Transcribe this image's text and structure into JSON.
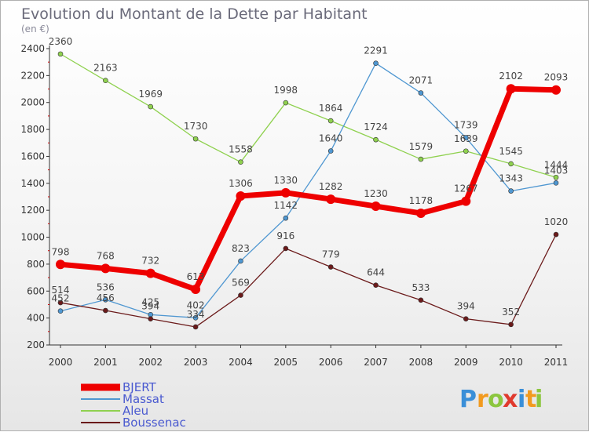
{
  "chart_data": {
    "type": "line",
    "title": "Evolution du Montant de la Dette par Habitant",
    "unit_label": "(en €)",
    "x": [
      "2000",
      "2001",
      "2002",
      "2003",
      "2004",
      "2005",
      "2006",
      "2007",
      "2008",
      "2009",
      "2010",
      "2011"
    ],
    "ylim": [
      200,
      2400
    ],
    "yticks": [
      200,
      400,
      600,
      800,
      1000,
      1200,
      1400,
      1600,
      1800,
      2000,
      2200,
      2400
    ],
    "grid": false,
    "legend_position": "bottom-left",
    "series": [
      {
        "name": "BJERT",
        "color": "#ee0000",
        "values": [
          798,
          768,
          732,
          613,
          1306,
          1330,
          1282,
          1230,
          1178,
          1267,
          2102,
          2093
        ]
      },
      {
        "name": "Massat",
        "color": "#4f97d1",
        "values": [
          452,
          536,
          425,
          402,
          823,
          1142,
          1640,
          2291,
          2071,
          1739,
          1343,
          1403
        ]
      },
      {
        "name": "Aleu",
        "color": "#8fd14f",
        "values": [
          2360,
          2163,
          1969,
          1730,
          1558,
          1998,
          1864,
          1724,
          1579,
          1639,
          1545,
          1444
        ]
      },
      {
        "name": "Boussenac",
        "color": "#6b1a1a",
        "values": [
          514,
          456,
          394,
          334,
          569,
          916,
          779,
          644,
          533,
          394,
          352,
          1020
        ]
      }
    ]
  },
  "logo": {
    "letters": [
      "P",
      "r",
      "o",
      "x",
      "i",
      "t",
      "i"
    ],
    "colors": [
      "#3a8fd8",
      "#f29a1e",
      "#8cc63f",
      "#e03a2e",
      "#3a8fd8",
      "#f29a1e",
      "#8cc63f"
    ]
  }
}
